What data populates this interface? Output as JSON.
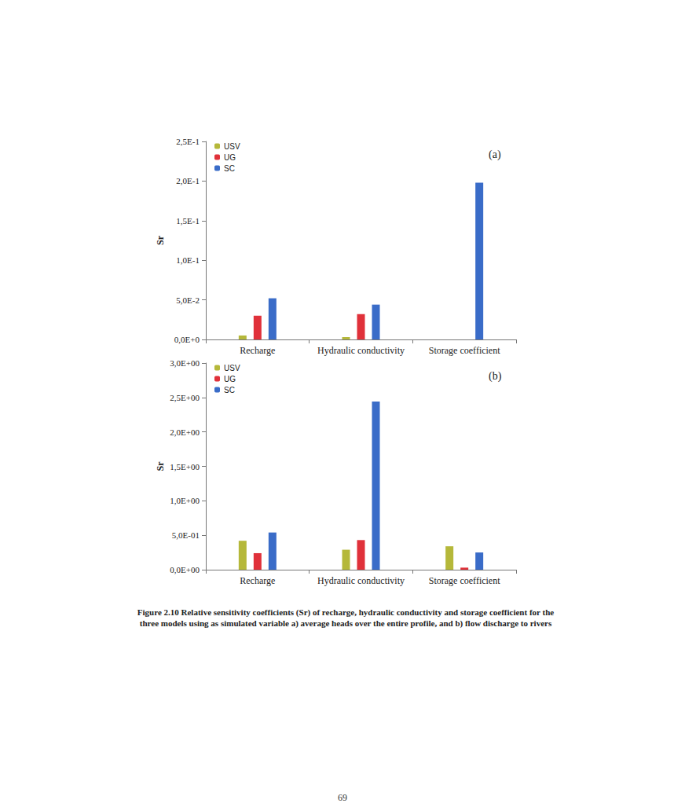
{
  "chart_data": [
    {
      "type": "bar",
      "title": "(a)",
      "ylabel": "Sr",
      "categories": [
        "Recharge",
        "Hydraulic conductivity",
        "Storage coefficient"
      ],
      "series": [
        {
          "name": "USV",
          "color": "#b5b83a",
          "values": [
            0.005,
            0.003,
            0
          ]
        },
        {
          "name": "UG",
          "color": "#e0313a",
          "values": [
            0.03,
            0.032,
            0
          ]
        },
        {
          "name": "SC",
          "color": "#3a6cc8",
          "values": [
            0.052,
            0.044,
            0.198
          ]
        }
      ],
      "ylim": [
        0,
        0.25
      ],
      "yticks": [
        {
          "value": 0,
          "label": "0,0E+0"
        },
        {
          "value": 0.05,
          "label": "5,0E-2"
        },
        {
          "value": 0.1,
          "label": "1,0E-1"
        },
        {
          "value": 0.15,
          "label": "1,5E-1"
        },
        {
          "value": 0.2,
          "label": "2,0E-1"
        },
        {
          "value": 0.25,
          "label": "2,5E-1"
        }
      ],
      "legend": "upper left",
      "grid": false
    },
    {
      "type": "bar",
      "title": "(b)",
      "ylabel": "Sr",
      "categories": [
        "Recharge",
        "Hydraulic conductivity",
        "Storage coefficient"
      ],
      "series": [
        {
          "name": "USV",
          "color": "#b5b83a",
          "values": [
            0.42,
            0.29,
            0.34
          ]
        },
        {
          "name": "UG",
          "color": "#e0313a",
          "values": [
            0.24,
            0.43,
            0.03
          ]
        },
        {
          "name": "SC",
          "color": "#3a6cc8",
          "values": [
            0.54,
            2.44,
            0.25
          ]
        }
      ],
      "ylim": [
        0,
        3
      ],
      "yticks": [
        {
          "value": 0,
          "label": "0,0E+00"
        },
        {
          "value": 0.5,
          "label": "5,0E-01"
        },
        {
          "value": 1,
          "label": "1,0E+00"
        },
        {
          "value": 1.5,
          "label": "1,5E+00"
        },
        {
          "value": 2,
          "label": "2,0E+00"
        },
        {
          "value": 2.5,
          "label": "2,5E+00"
        },
        {
          "value": 3,
          "label": "3,0E+00"
        }
      ],
      "legend": "upper left",
      "grid": false
    }
  ],
  "caption": "Figure 2.10 Relative sensitivity coefficients (Sr) of recharge, hydraulic conductivity and storage coefficient for the three models using as simulated variable a) average heads over the entire profile, and b) flow discharge to rivers",
  "page_number": "69"
}
